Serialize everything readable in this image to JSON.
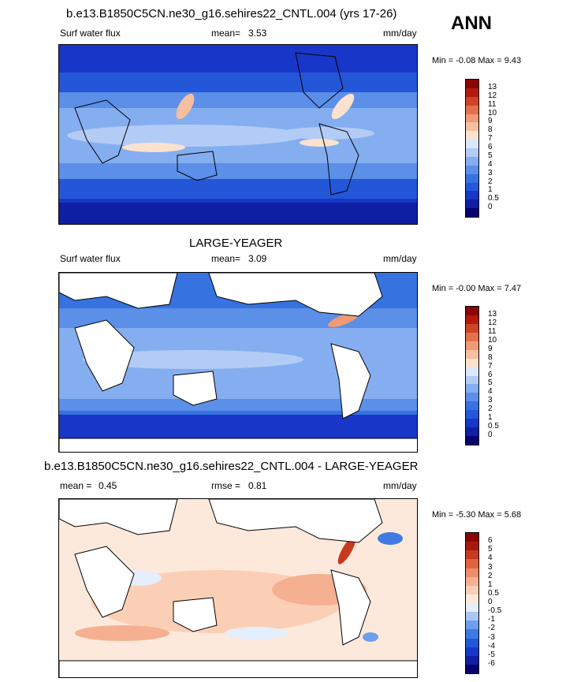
{
  "page": {
    "season": "ANN"
  },
  "panels": [
    {
      "title": "b.e13.B1850C5CN.ne30_g16.sehires22_CNTL.004 (yrs 17-26)",
      "variable": "Surf water flux",
      "stat_label": "mean=",
      "stat_value": "3.53",
      "units": "mm/day",
      "minmax": "Min = -0.08 Max = 9.43"
    },
    {
      "title": "LARGE-YEAGER",
      "variable": "Surf water flux",
      "stat_label": "mean=",
      "stat_value": "3.09",
      "units": "mm/day",
      "minmax": "Min = -0.00 Max = 7.47"
    },
    {
      "title": "b.e13.B1850C5CN.ne30_g16.sehires22_CNTL.004 - LARGE-YEAGER",
      "mean_label": "mean =",
      "mean_value": "0.45",
      "rmse_label": "rmse =",
      "rmse_value": "0.81",
      "units": "mm/day",
      "minmax": "Min = -5.30 Max = 5.68"
    }
  ],
  "chart_data": [
    {
      "type": "heatmap",
      "title": "b.e13.B1850C5CN.ne30_g16.sehires22_CNTL.004 (yrs 17-26)",
      "variable": "Surf water flux",
      "units": "mm/day",
      "mean": 3.53,
      "min": -0.08,
      "max": 9.43,
      "colorbar_levels": [
        "0",
        "0.5",
        "1",
        "2",
        "3",
        "4",
        "5",
        "6",
        "7",
        "8",
        "9",
        "10",
        "11",
        "12",
        "13"
      ],
      "colorbar_colors": [
        "#08006e",
        "#0f1fa3",
        "#1836c8",
        "#2357d8",
        "#3673e0",
        "#5b8fe8",
        "#84aef0",
        "#b2ccf6",
        "#dbe7fb",
        "#fbe2cf",
        "#f6bfa0",
        "#f09a76",
        "#e5704d",
        "#cf4427",
        "#b11a0d",
        "#8a0505"
      ],
      "land_masked": false
    },
    {
      "type": "heatmap",
      "title": "LARGE-YEAGER",
      "variable": "Surf water flux",
      "units": "mm/day",
      "mean": 3.09,
      "min": -0.0,
      "max": 7.47,
      "colorbar_levels": [
        "0",
        "0.5",
        "1",
        "2",
        "3",
        "4",
        "5",
        "6",
        "7",
        "8",
        "9",
        "10",
        "11",
        "12",
        "13"
      ],
      "colorbar_colors": [
        "#08006e",
        "#0f1fa3",
        "#1836c8",
        "#2357d8",
        "#3673e0",
        "#5b8fe8",
        "#84aef0",
        "#b2ccf6",
        "#dbe7fb",
        "#fbe2cf",
        "#f6bfa0",
        "#f09a76",
        "#e5704d",
        "#cf4427",
        "#b11a0d",
        "#8a0505"
      ],
      "land_masked": true
    },
    {
      "type": "heatmap",
      "title": "b.e13.B1850C5CN.ne30_g16.sehires22_CNTL.004 - LARGE-YEAGER",
      "units": "mm/day",
      "mean": 0.45,
      "rmse": 0.81,
      "min": -5.3,
      "max": 5.68,
      "colorbar_levels": [
        "-6",
        "-5",
        "-4",
        "-3",
        "-2",
        "-1",
        "-0.5",
        "0",
        "0.5",
        "1",
        "2",
        "3",
        "4",
        "5",
        "6"
      ],
      "colorbar_colors": [
        "#08006e",
        "#0f1fa3",
        "#1836c8",
        "#2357d8",
        "#3f7ae2",
        "#6f9eee",
        "#a9c6f5",
        "#e4eefc",
        "#fde9dc",
        "#fbcfb6",
        "#f5b092",
        "#ee8d6a",
        "#e0623f",
        "#c83a1f",
        "#a8180c",
        "#8a0505"
      ],
      "land_masked": true
    }
  ]
}
